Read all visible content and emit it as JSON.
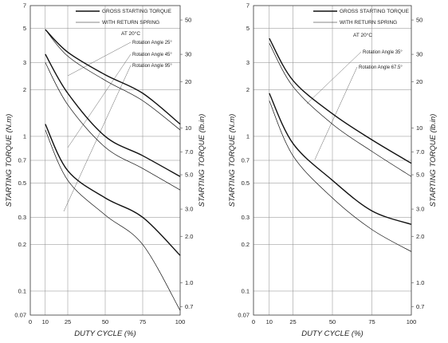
{
  "chart_data": [
    {
      "type": "line",
      "xlabel": "DUTY CYCLE (%)",
      "ylabel": "STARTING TORQUE (N.m)",
      "ylabel_right": "STARTING TORQUE (lb.in)",
      "x_ticks": [
        "0",
        "10",
        "25",
        "50",
        "75",
        "100"
      ],
      "y_ticks": [
        "0.07",
        "0.1",
        "0.2",
        "0.3",
        "0.5",
        "0.7",
        "1",
        "2",
        "3",
        "5",
        "7"
      ],
      "y_ticks_right": [
        "0.7",
        "1.0",
        "2.0",
        "3.0",
        "5.0",
        "7.0",
        "10",
        "20",
        "30",
        "50"
      ],
      "xlim": [
        0,
        100
      ],
      "ylim": [
        0.07,
        7
      ],
      "yscale": "log",
      "grid": true,
      "legend": [
        {
          "label": "GROSS STARTING TORQUE",
          "style": "heavy"
        },
        {
          "label": "WITH RETURN SPRING",
          "style": "light"
        }
      ],
      "condition": "AT 20°C",
      "annotations": [
        "Rotation Angle 25°",
        "Rotation Angle 45°",
        "Rotation Angle 95°"
      ],
      "series": [
        {
          "group": "Rotation Angle 25°",
          "kind": "gross",
          "x": [
            10,
            25,
            50,
            75,
            100
          ],
          "y": [
            4.9,
            3.5,
            2.5,
            1.9,
            1.2
          ]
        },
        {
          "group": "Rotation Angle 25°",
          "kind": "return_spring",
          "x": [
            10,
            25,
            50,
            75,
            100
          ],
          "y": [
            4.9,
            3.3,
            2.3,
            1.7,
            1.1
          ]
        },
        {
          "group": "Rotation Angle 45°",
          "kind": "gross",
          "x": [
            10,
            25,
            50,
            75,
            100
          ],
          "y": [
            3.4,
            1.9,
            1.0,
            0.75,
            0.55
          ]
        },
        {
          "group": "Rotation Angle 45°",
          "kind": "return_spring",
          "x": [
            10,
            25,
            50,
            75,
            100
          ],
          "y": [
            3.0,
            1.6,
            0.85,
            0.62,
            0.45
          ]
        },
        {
          "group": "Rotation Angle 95°",
          "kind": "gross",
          "x": [
            10,
            25,
            50,
            75,
            100
          ],
          "y": [
            1.2,
            0.6,
            0.4,
            0.3,
            0.17
          ]
        },
        {
          "group": "Rotation Angle 95°",
          "kind": "return_spring",
          "x": [
            10,
            25,
            50,
            75,
            100
          ],
          "y": [
            1.1,
            0.52,
            0.31,
            0.2,
            0.075
          ]
        }
      ]
    },
    {
      "type": "line",
      "xlabel": "DUTY CYCLE (%)",
      "ylabel": "STARTING TORQUE (N.m)",
      "ylabel_right": "STARTING TORQUE (lb.in)",
      "x_ticks": [
        "0",
        "10",
        "25",
        "50",
        "75",
        "100"
      ],
      "y_ticks": [
        "0.07",
        "0.1",
        "0.2",
        "0.3",
        "0.5",
        "0.7",
        "1",
        "2",
        "3",
        "5",
        "7"
      ],
      "y_ticks_right": [
        "0.7",
        "1.0",
        "2.0",
        "3.0",
        "5.0",
        "7.0",
        "10",
        "20",
        "30",
        "50"
      ],
      "xlim": [
        0,
        100
      ],
      "ylim": [
        0.07,
        7
      ],
      "yscale": "log",
      "grid": true,
      "legend": [
        {
          "label": "GROSS STARTING TORQUE",
          "style": "heavy"
        },
        {
          "label": "WITH RETURN SPRING",
          "style": "light"
        }
      ],
      "condition": "AT 20°C",
      "annotations": [
        "Rotation Angle 35°",
        "Rotation Angle 67.5°"
      ],
      "series": [
        {
          "group": "Rotation Angle 35°",
          "kind": "gross",
          "x": [
            10,
            25,
            50,
            75,
            100
          ],
          "y": [
            4.3,
            2.3,
            1.4,
            0.95,
            0.67
          ]
        },
        {
          "group": "Rotation Angle 35°",
          "kind": "return_spring",
          "x": [
            10,
            25,
            50,
            75,
            100
          ],
          "y": [
            4.0,
            2.1,
            1.2,
            0.8,
            0.55
          ]
        },
        {
          "group": "Rotation Angle 67.5°",
          "kind": "gross",
          "x": [
            10,
            25,
            50,
            75,
            100
          ],
          "y": [
            1.9,
            0.9,
            0.52,
            0.33,
            0.27
          ]
        },
        {
          "group": "Rotation Angle 67.5°",
          "kind": "return_spring",
          "x": [
            10,
            25,
            50,
            75,
            100
          ],
          "y": [
            1.7,
            0.75,
            0.4,
            0.25,
            0.18
          ]
        }
      ]
    }
  ]
}
